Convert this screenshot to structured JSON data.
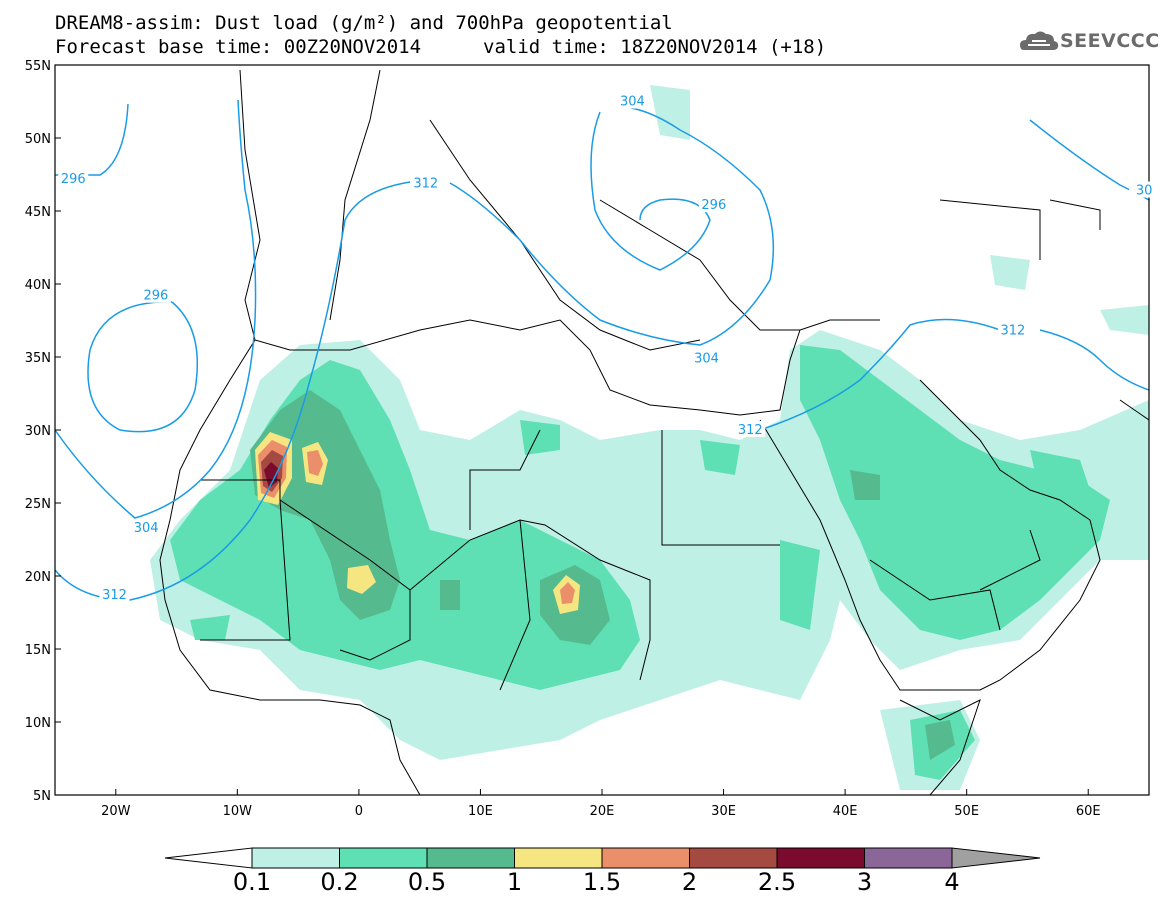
{
  "title": {
    "line1": "DREAM8-assim: Dust load (g/m²) and 700hPa geopotential",
    "line2": "Forecast base time: 00Z20NOV2014",
    "line3": "valid time: 18Z20NOV2014 (+18)"
  },
  "logo": {
    "text": "SEEVCCC"
  },
  "axes": {
    "lat_labels": [
      "55N",
      "50N",
      "45N",
      "40N",
      "35N",
      "30N",
      "25N",
      "20N",
      "15N",
      "10N",
      "5N"
    ],
    "lat_values": [
      55,
      50,
      45,
      40,
      35,
      30,
      25,
      20,
      15,
      10,
      5
    ],
    "lon_labels": [
      "20W",
      "10W",
      "0",
      "10E",
      "20E",
      "30E",
      "40E",
      "50E",
      "60E"
    ],
    "lon_values": [
      -20,
      -10,
      0,
      10,
      20,
      30,
      40,
      50,
      60
    ],
    "lon_range": [
      -25,
      65
    ],
    "lat_range": [
      5,
      55
    ]
  },
  "contours": {
    "color": "#1a9be6",
    "labels": [
      {
        "text": "296",
        "lon": -23.5,
        "lat": 47.2
      },
      {
        "text": "296",
        "lon": -16.7,
        "lat": 39.2
      },
      {
        "text": "304",
        "lon": -17.5,
        "lat": 23.3
      },
      {
        "text": "312",
        "lon": -20.1,
        "lat": 18.7
      },
      {
        "text": "312",
        "lon": 5.5,
        "lat": 46.9
      },
      {
        "text": "304",
        "lon": 22.5,
        "lat": 52.5
      },
      {
        "text": "296",
        "lon": 29.2,
        "lat": 45.4
      },
      {
        "text": "304",
        "lon": 28.6,
        "lat": 34.9
      },
      {
        "text": "312",
        "lon": 32.2,
        "lat": 30.0
      },
      {
        "text": "312",
        "lon": 53.8,
        "lat": 36.8
      },
      {
        "text": "30",
        "lon": 64.6,
        "lat": 46.4
      }
    ]
  },
  "colorbar": {
    "labels": [
      "0.1",
      "0.2",
      "0.5",
      "1",
      "1.5",
      "2",
      "2.5",
      "3",
      "4"
    ],
    "colors": [
      "#bff0e6",
      "#5ee0b4",
      "#55bb8f",
      "#f5e681",
      "#eb8f6b",
      "#a44a40",
      "#7a0a2e",
      "#8b6698"
    ],
    "low_color": "#ffffff",
    "high_color": "#a0a0a0"
  }
}
